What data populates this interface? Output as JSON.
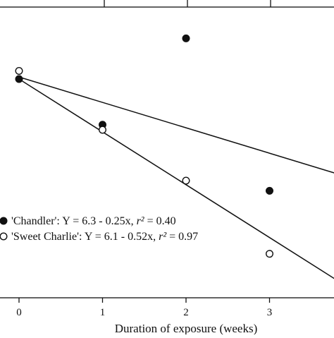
{
  "chart_data": {
    "type": "scatter",
    "xlabel": "Duration of exposure (weeks)",
    "ylabel": "",
    "title": "",
    "xlim": [
      -0.2,
      3.8
    ],
    "ylim": [
      4.2,
      7.1
    ],
    "x_ticks": [
      0,
      1,
      2,
      3
    ],
    "x_tick_labels": [
      "0",
      "1",
      "2",
      "3"
    ],
    "grid": false,
    "legend_position": "lower-left",
    "series": [
      {
        "name": "'Chandler'",
        "marker": "filled-circle",
        "color": "#111111",
        "x": [
          0,
          1,
          2,
          3
        ],
        "y": [
          6.3,
          5.85,
          6.7,
          5.2
        ],
        "fit": {
          "intercept": 6.3,
          "slope": -0.25
        },
        "legend_label": "'Chandler': Y = 6.3 - 0.25x,",
        "r2_value": "0.40"
      },
      {
        "name": "'Sweet Charlie'",
        "marker": "open-circle",
        "color": "#111111",
        "x": [
          0,
          1,
          2,
          3
        ],
        "y": [
          6.38,
          5.8,
          5.3,
          4.58
        ],
        "fit": {
          "intercept": 6.1,
          "slope": -0.52
        },
        "legend_label": "'Sweet Charlie': Y = 6.1 - 0.52x,",
        "r2_value": "0.97"
      }
    ],
    "r2_label": "r²",
    "r2_eq": " = "
  }
}
